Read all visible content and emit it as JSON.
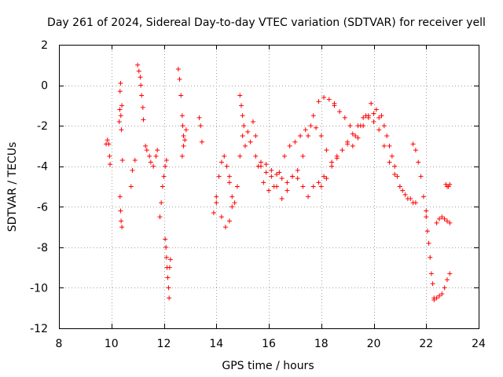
{
  "chart_data": {
    "type": "scatter",
    "title": "Day 261 of 2024, Sidereal Day-to-day VTEC variation (SDTVAR) for receiver yell",
    "xlabel": "GPS time / hours",
    "ylabel": "SDTVAR / TECUs",
    "xlim": [
      8,
      24
    ],
    "ylim": [
      -12,
      2
    ],
    "xticks": [
      8,
      10,
      12,
      14,
      16,
      18,
      20,
      22,
      24
    ],
    "yticks": [
      2,
      0,
      -2,
      -4,
      -6,
      -8,
      -10,
      -12
    ],
    "grid": true,
    "marker": "+",
    "colors": {
      "series": "#ff0000",
      "grid": "#a0a0a0",
      "axes": "#000000"
    },
    "series": [
      {
        "name": "SDTVAR",
        "segments": [
          {
            "x": [
              9.8,
              9.85,
              9.9,
              9.93,
              9.95
            ],
            "y": [
              -2.9,
              -2.7,
              -2.9,
              -3.5,
              -3.9
            ]
          },
          {
            "x": [
              10.3,
              10.32,
              10.33,
              10.35,
              10.36,
              10.38,
              10.4
            ],
            "y": [
              -1.8,
              -1.2,
              -0.3,
              0.1,
              -1.5,
              -2.2,
              -1.0
            ]
          },
          {
            "x": [
              10.33,
              10.35,
              10.37,
              10.4,
              10.42
            ],
            "y": [
              -5.5,
              -6.2,
              -6.7,
              -7.0,
              -3.7
            ]
          },
          {
            "x": [
              10.75,
              10.8,
              10.9
            ],
            "y": [
              -5.0,
              -4.2,
              -3.7
            ]
          },
          {
            "x": [
              11.0,
              11.05,
              11.1,
              11.12,
              11.15,
              11.2,
              11.22
            ],
            "y": [
              1.0,
              0.7,
              0.4,
              0.0,
              -0.5,
              -1.1,
              -1.7
            ]
          },
          {
            "x": [
              11.3,
              11.35,
              11.45,
              11.5,
              11.6,
              11.7,
              11.75
            ],
            "y": [
              -3.0,
              -3.2,
              -3.5,
              -3.8,
              -4.0,
              -3.5,
              -3.2
            ]
          },
          {
            "x": [
              11.85,
              11.9,
              11.95,
              12.0,
              12.05,
              12.1
            ],
            "y": [
              -6.5,
              -5.8,
              -5.0,
              -4.5,
              -4.0,
              -3.7
            ]
          },
          {
            "x": [
              12.05,
              12.08,
              12.1,
              12.12,
              12.15,
              12.18,
              12.2,
              12.22,
              12.25
            ],
            "y": [
              -7.6,
              -8.0,
              -8.5,
              -9.0,
              -9.5,
              -10.0,
              -10.5,
              -9.0,
              -8.6
            ]
          },
          {
            "x": [
              12.55,
              12.6,
              12.65,
              12.7,
              12.72,
              12.75,
              12.8,
              12.85
            ],
            "y": [
              0.8,
              0.3,
              -0.5,
              -1.5,
              -2.0,
              -2.5,
              -2.7,
              -2.2
            ]
          },
          {
            "x": [
              12.7,
              12.75
            ],
            "y": [
              -3.5,
              -3.0
            ]
          },
          {
            "x": [
              13.35,
              13.4,
              13.45
            ],
            "y": [
              -1.6,
              -2.0,
              -2.8
            ]
          },
          {
            "x": [
              13.9,
              14.0,
              14.1,
              14.2,
              14.3,
              14.4,
              14.5
            ],
            "y": [
              -6.3,
              -5.5,
              -4.5,
              -3.8,
              -3.5,
              -4.0,
              -4.5
            ]
          },
          {
            "x": [
              14.0,
              14.2,
              14.35,
              14.5,
              14.6
            ],
            "y": [
              -5.8,
              -6.5,
              -7.0,
              -6.7,
              -6.0
            ]
          },
          {
            "x": [
              14.5,
              14.6,
              14.7,
              14.8,
              14.9,
              15.0
            ],
            "y": [
              -4.8,
              -5.5,
              -5.8,
              -5.0,
              -3.5,
              -2.5
            ]
          },
          {
            "x": [
              14.9,
              14.95,
              15.0,
              15.05,
              15.1
            ],
            "y": [
              -0.5,
              -1.0,
              -1.5,
              -2.0,
              -3.0
            ]
          },
          {
            "x": [
              15.2,
              15.3,
              15.4,
              15.5
            ],
            "y": [
              -2.3,
              -2.8,
              -1.8,
              -2.5
            ]
          },
          {
            "x": [
              15.5,
              15.7,
              15.9,
              16.1,
              16.3,
              16.5,
              16.7,
              16.9,
              17.1,
              17.3,
              17.5,
              17.7,
              17.9,
              18.1,
              18.3,
              18.5
            ],
            "y": [
              -3.5,
              -4.0,
              -4.3,
              -4.5,
              -4.4,
              -4.6,
              -4.8,
              -4.5,
              -4.2,
              -3.5,
              -2.5,
              -1.5,
              -0.8,
              -0.6,
              -0.7,
              -0.9
            ]
          },
          {
            "x": [
              15.6,
              15.8,
              16.0,
              16.2,
              16.4,
              16.6,
              16.8,
              17.0,
              17.2,
              17.4,
              17.6,
              17.8,
              18.0,
              18.2,
              18.4,
              18.6
            ],
            "y": [
              -4.0,
              -4.8,
              -5.2,
              -5.0,
              -4.3,
              -3.5,
              -3.0,
              -2.8,
              -2.5,
              -2.2,
              -2.0,
              -2.1,
              -2.5,
              -3.2,
              -3.8,
              -3.5
            ]
          },
          {
            "x": [
              15.7,
              15.9,
              16.1,
              16.3,
              16.5,
              16.7,
              16.9,
              17.1,
              17.3,
              17.5,
              17.7,
              17.9,
              18.1
            ],
            "y": [
              -3.8,
              -3.9,
              -4.2,
              -5.0,
              -5.6,
              -5.2,
              -4.5,
              -4.6,
              -5.0,
              -5.5,
              -5.0,
              -4.8,
              -4.5
            ]
          },
          {
            "x": [
              18.0,
              18.2,
              18.4,
              18.6,
              18.8,
              19.0,
              19.2,
              19.4,
              19.6,
              19.8,
              20.0,
              20.2,
              20.4,
              20.6,
              20.8,
              21.0
            ],
            "y": [
              -5.0,
              -4.6,
              -4.0,
              -3.6,
              -3.2,
              -2.9,
              -2.4,
              -2.0,
              -1.6,
              -1.5,
              -1.4,
              -1.6,
              -2.0,
              -3.0,
              -4.0,
              -5.0
            ]
          },
          {
            "x": [
              18.5,
              18.7,
              18.9,
              19.1,
              19.3,
              19.5,
              19.7,
              19.9,
              20.1,
              20.3,
              20.5,
              20.7,
              20.9,
              21.1,
              21.3,
              21.5
            ],
            "y": [
              -1.0,
              -1.3,
              -1.6,
              -2.0,
              -2.5,
              -2.0,
              -1.5,
              -0.9,
              -1.2,
              -1.5,
              -2.5,
              -3.5,
              -4.5,
              -5.2,
              -5.6,
              -5.8
            ]
          },
          {
            "x": [
              19.0,
              19.2,
              19.4,
              19.6,
              19.8,
              20.0,
              20.2,
              20.4,
              20.6,
              20.8,
              21.0,
              21.2,
              21.4,
              21.6
            ],
            "y": [
              -2.8,
              -3.0,
              -2.6,
              -2.0,
              -1.6,
              -1.8,
              -2.2,
              -3.0,
              -3.8,
              -4.4,
              -5.0,
              -5.4,
              -5.6,
              -5.8
            ]
          },
          {
            "x": [
              21.5,
              21.6,
              21.7,
              21.8,
              21.9,
              22.0
            ],
            "y": [
              -2.9,
              -3.2,
              -3.8,
              -4.5,
              -5.5,
              -6.2
            ]
          },
          {
            "x": [
              22.0,
              22.05,
              22.1,
              22.15,
              22.2,
              22.25,
              22.3
            ],
            "y": [
              -6.5,
              -7.2,
              -7.8,
              -8.5,
              -9.3,
              -9.8,
              -10.5
            ]
          },
          {
            "x": [
              22.3,
              22.4,
              22.5,
              22.6,
              22.7,
              22.8,
              22.9
            ],
            "y": [
              -10.6,
              -10.5,
              -10.4,
              -10.3,
              -10.0,
              -9.6,
              -9.3
            ]
          },
          {
            "x": [
              22.4,
              22.5,
              22.6,
              22.7,
              22.8,
              22.9
            ],
            "y": [
              -6.8,
              -6.6,
              -6.5,
              -6.6,
              -6.7,
              -6.8
            ]
          },
          {
            "x": [
              22.75,
              22.8,
              22.85,
              22.9
            ],
            "y": [
              -4.9,
              -5.0,
              -5.0,
              -4.9
            ]
          }
        ]
      }
    ]
  }
}
